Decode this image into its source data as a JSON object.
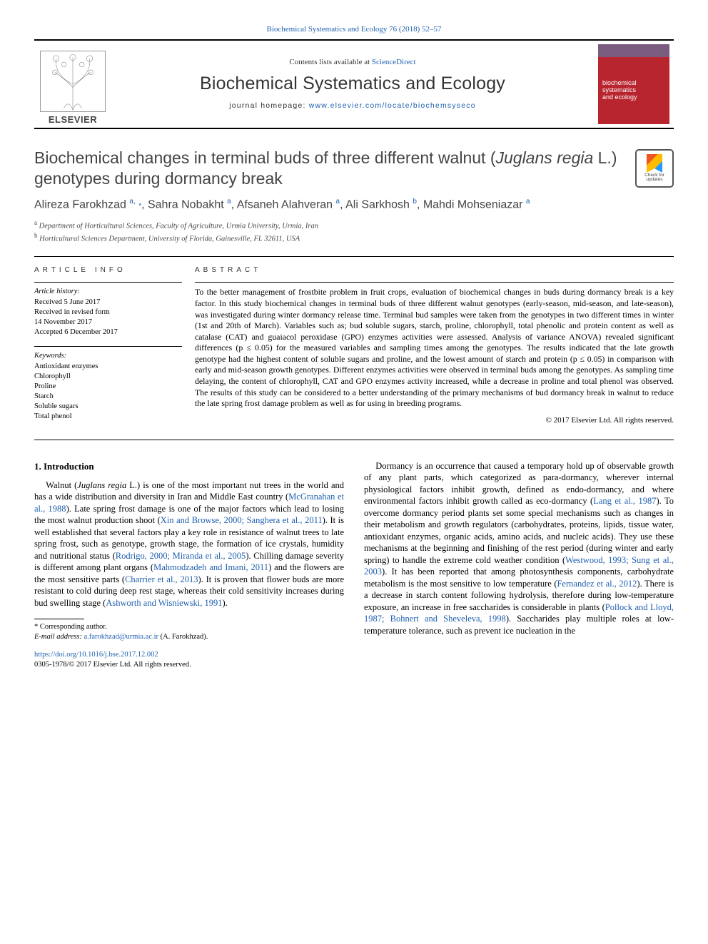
{
  "colors": {
    "link": "#2060b0",
    "journal_cover_bg": "#b8252f",
    "journal_cover_top": "#7a5c7e",
    "text_muted": "#444444",
    "rule": "#000000"
  },
  "top_link_text": "Biochemical Systematics and Ecology 76 (2018) 52–57",
  "masthead": {
    "publisher": "ELSEVIER",
    "contents_prefix": "Contents lists available at ",
    "contents_link": "ScienceDirect",
    "journal_title": "Biochemical Systematics and Ecology",
    "homepage_prefix": "journal homepage: ",
    "homepage_url": "www.elsevier.com/locate/biochemsyseco",
    "cover_title_line1": "biochemical",
    "cover_title_line2": "systematics",
    "cover_title_line3": "and ecology"
  },
  "check_updates": {
    "line1": "Check for",
    "line2": "updates"
  },
  "article": {
    "title_plain_1": "Biochemical changes in terminal buds of three different walnut (",
    "title_italic": "Juglans regia",
    "title_plain_2": " L.) genotypes during dormancy break",
    "authors_html": "Alireza Farokhzad <sup>a,</sup> <span class='star-sup'>*</span>, Sahra Nobakht <sup>a</sup>, Afsaneh Alahveran <sup>a</sup>, Ali Sarkhosh <sup>b</sup>, Mahdi Mohseniazar <sup>a</sup>",
    "affiliations": [
      {
        "sup": "a",
        "text": "Department of Horticultural Sciences, Faculty of Agriculture, Urmia University, Urmia, Iran"
      },
      {
        "sup": "b",
        "text": "Horticultural Sciences Department, University of Florida, Gainesville, FL 32611, USA"
      }
    ]
  },
  "article_info": {
    "heading": "article info",
    "history_label": "Article history:",
    "history": [
      "Received 5 June 2017",
      "Received in revised form",
      "14 November 2017",
      "Accepted 6 December 2017"
    ],
    "keywords_label": "Keywords:",
    "keywords": [
      "Antioxidant enzymes",
      "Chlorophyll",
      "Proline",
      "Starch",
      "Soluble sugars",
      "Total phenol"
    ]
  },
  "abstract": {
    "heading": "abstract",
    "text": "To the better management of frostbite problem in fruit crops, evaluation of biochemical changes in buds during dormancy break is a key factor. In this study biochemical changes in terminal buds of three different walnut genotypes (early-season, mid-season, and late-season), was investigated during winter dormancy release time. Terminal bud samples were taken from the genotypes in two different times in winter (1st and 20th of March). Variables such as; bud soluble sugars, starch, proline, chlorophyll, total phenolic and protein content as well as catalase (CAT) and guaiacol peroxidase (GPO) enzymes activities were assessed. Analysis of variance ANOVA) revealed significant differences (p ≤ 0.05) for the measured variables and sampling times among the genotypes. The results indicated that the late growth genotype had the highest content of soluble sugars and proline, and the lowest amount of starch and protein (p ≤ 0.05) in comparison with early and mid-season growth genotypes. Different enzymes activities were observed in terminal buds among the genotypes. As sampling time delaying, the content of chlorophyll, CAT and GPO enzymes activity increased, while a decrease in proline and total phenol was observed. The results of this study can be considered to a better understanding of the primary mechanisms of bud dormancy break in walnut to reduce the late spring frost damage problem as well as for using in breeding programs.",
    "copyright": "© 2017 Elsevier Ltd. All rights reserved."
  },
  "intro": {
    "heading": "1. Introduction",
    "left_para_segments": [
      {
        "t": "text",
        "v": "Walnut ("
      },
      {
        "t": "i",
        "v": "Juglans regia"
      },
      {
        "t": "text",
        "v": " L.) is one of the most important nut trees in the world and has a wide distribution and diversity in Iran and Middle East country ("
      },
      {
        "t": "a",
        "v": "McGranahan et al., 1988"
      },
      {
        "t": "text",
        "v": "). Late spring frost damage is one of the major factors which lead to losing the most walnut production shoot ("
      },
      {
        "t": "a",
        "v": "Xin and Browse, 2000; Sanghera et al., 2011"
      },
      {
        "t": "text",
        "v": "). It is well established that several factors play a key role in resistance of walnut trees to late spring frost, such as genotype, growth stage, the formation of ice crystals, humidity and nutritional status ("
      },
      {
        "t": "a",
        "v": "Rodrigo, 2000; Miranda et al., 2005"
      },
      {
        "t": "text",
        "v": "). Chilling damage severity is different among plant organs ("
      },
      {
        "t": "a",
        "v": "Mahmodzadeh and Imani, 2011"
      },
      {
        "t": "text",
        "v": ") and the flowers are the most sensitive parts ("
      },
      {
        "t": "a",
        "v": "Charrier et al., 2013"
      },
      {
        "t": "text",
        "v": "). It is proven that flower buds are more resistant to cold during deep rest stage, whereas their cold sensitivity increases during bud swelling stage ("
      },
      {
        "t": "a",
        "v": "Ashworth and Wisniewski, 1991"
      },
      {
        "t": "text",
        "v": ")."
      }
    ],
    "right_para_segments": [
      {
        "t": "text",
        "v": "Dormancy is an occurrence that caused a temporary hold up of observable growth of any plant parts, which categorized as para-dormancy, wherever internal physiological factors inhibit growth, defined as endo-dormancy, and where environmental factors inhibit growth called as eco-dormancy ("
      },
      {
        "t": "a",
        "v": "Lang et al., 1987"
      },
      {
        "t": "text",
        "v": "). To overcome dormancy period plants set some special mechanisms such as changes in their metabolism and growth regulators (carbohydrates, proteins, lipids, tissue water, antioxidant enzymes, organic acids, amino acids, and nucleic acids). They use these mechanisms at the beginning and finishing of the rest period (during winter and early spring) to handle the extreme cold weather condition ("
      },
      {
        "t": "a",
        "v": "Westwood, 1993; Sung et al., 2003"
      },
      {
        "t": "text",
        "v": "). It has been reported that among photosynthesis components, carbohydrate metabolism is the most sensitive to low temperature ("
      },
      {
        "t": "a",
        "v": "Fernandez et al., 2012"
      },
      {
        "t": "text",
        "v": "). There is a decrease in starch content following hydrolysis, therefore during low-temperature exposure, an increase in free saccharides is considerable in plants ("
      },
      {
        "t": "a",
        "v": "Pollock and Lloyd, 1987; Bohnert and Sheveleva, 1998"
      },
      {
        "t": "text",
        "v": "). Saccharides play multiple roles at low-temperature tolerance, such as prevent ice nucleation in the"
      }
    ]
  },
  "footnote": {
    "corr_label": "* Corresponding author.",
    "email_label": "E-mail address: ",
    "email": "a.farokhzad@urmia.ac.ir",
    "email_paren": " (A. Farokhzad)."
  },
  "footer": {
    "doi": "https://doi.org/10.1016/j.bse.2017.12.002",
    "issn_line": "0305-1978/© 2017 Elsevier Ltd. All rights reserved."
  }
}
